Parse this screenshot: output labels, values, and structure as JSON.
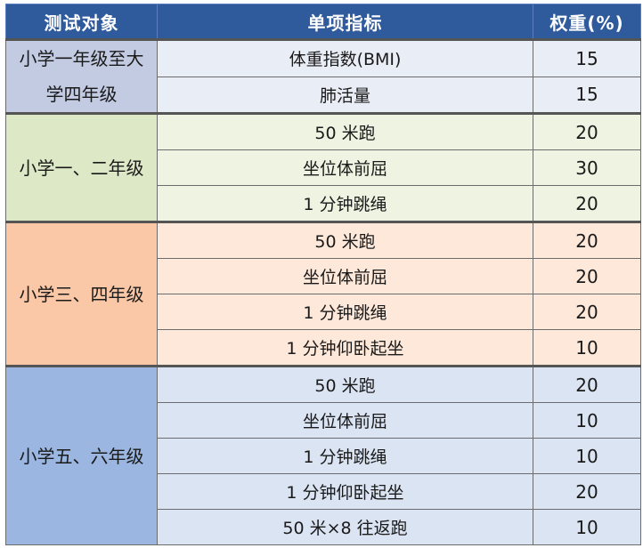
{
  "header": {
    "col1": "测试对象",
    "col2": "单项指标",
    "col3": "权重(%)"
  },
  "groups": [
    {
      "name": "小学一年级至大学四年级",
      "rows": [
        {
          "item": "体重指数(BMI)",
          "weight": "15"
        },
        {
          "item": "肺活量",
          "weight": "15"
        }
      ]
    },
    {
      "name": "小学一、二年级",
      "rows": [
        {
          "item": "50 米跑",
          "weight": "20"
        },
        {
          "item": "坐位体前屈",
          "weight": "30"
        },
        {
          "item": "1 分钟跳绳",
          "weight": "20"
        }
      ]
    },
    {
      "name": "小学三、四年级",
      "rows": [
        {
          "item": "50 米跑",
          "weight": "20"
        },
        {
          "item": "坐位体前屈",
          "weight": "20"
        },
        {
          "item": "1 分钟跳绳",
          "weight": "20"
        },
        {
          "item": "1 分钟仰卧起坐",
          "weight": "10"
        }
      ]
    },
    {
      "name": "小学五、六年级",
      "rows": [
        {
          "item": "50 米跑",
          "weight": "20"
        },
        {
          "item": "坐位体前屈",
          "weight": "10"
        },
        {
          "item": "1 分钟跳绳",
          "weight": "10"
        },
        {
          "item": "1 分钟仰卧起坐",
          "weight": "20"
        },
        {
          "item": "50 米×8 往返跑",
          "weight": "10"
        }
      ]
    }
  ]
}
